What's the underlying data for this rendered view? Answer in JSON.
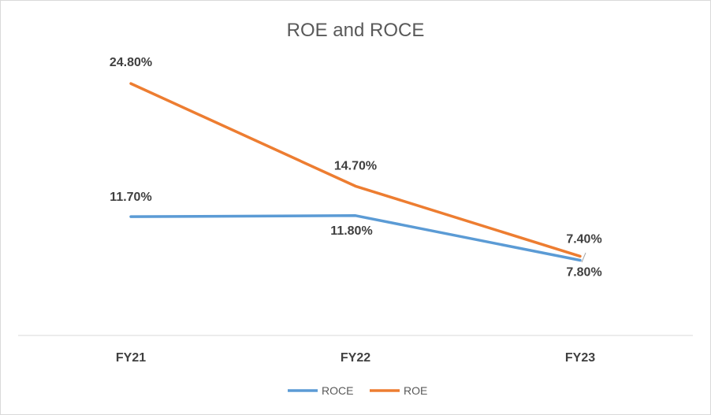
{
  "chart_data": {
    "type": "line",
    "title": "ROE and ROCE",
    "categories": [
      "FY21",
      "FY22",
      "FY23"
    ],
    "series": [
      {
        "name": "ROCE",
        "color": "#5B9BD5",
        "values": [
          11.7,
          11.8,
          7.4
        ],
        "labels": [
          "11.70%",
          "11.80%",
          "7.40%"
        ]
      },
      {
        "name": "ROE",
        "color": "#ED7D31",
        "values": [
          24.8,
          14.7,
          7.8
        ],
        "labels": [
          "24.80%",
          "14.70%",
          "7.80%"
        ]
      }
    ],
    "xlabel": "",
    "ylabel": "",
    "ylim": [
      0,
      30
    ],
    "grid": false,
    "legend": "bottom"
  }
}
